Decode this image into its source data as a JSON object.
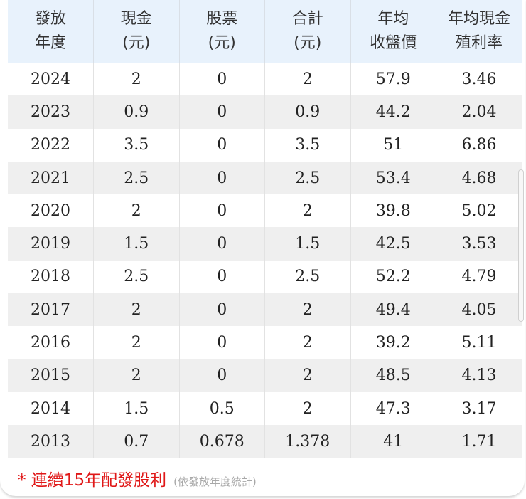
{
  "table": {
    "headers": [
      {
        "line1": "發放",
        "line2": "年度"
      },
      {
        "line1": "現金",
        "line2": "(元)"
      },
      {
        "line1": "股票",
        "line2": "(元)"
      },
      {
        "line1": "合計",
        "line2": "(元)"
      },
      {
        "line1": "年均",
        "line2": "收盤價"
      },
      {
        "line1": "年均現金",
        "line2": "殖利率"
      }
    ],
    "rows": [
      [
        "2024",
        "2",
        "0",
        "2",
        "57.9",
        "3.46"
      ],
      [
        "2023",
        "0.9",
        "0",
        "0.9",
        "44.2",
        "2.04"
      ],
      [
        "2022",
        "3.5",
        "0",
        "3.5",
        "51",
        "6.86"
      ],
      [
        "2021",
        "2.5",
        "0",
        "2.5",
        "53.4",
        "4.68"
      ],
      [
        "2020",
        "2",
        "0",
        "2",
        "39.8",
        "5.02"
      ],
      [
        "2019",
        "1.5",
        "0",
        "1.5",
        "42.5",
        "3.53"
      ],
      [
        "2018",
        "2.5",
        "0",
        "2.5",
        "52.2",
        "4.79"
      ],
      [
        "2017",
        "2",
        "0",
        "2",
        "49.4",
        "4.05"
      ],
      [
        "2016",
        "2",
        "0",
        "2",
        "39.2",
        "5.11"
      ],
      [
        "2015",
        "2",
        "0",
        "2",
        "48.5",
        "4.13"
      ],
      [
        "2014",
        "1.5",
        "0.5",
        "2",
        "47.3",
        "3.17"
      ],
      [
        "2013",
        "0.7",
        "0.678",
        "1.378",
        "41",
        "1.71"
      ]
    ]
  },
  "footnote": {
    "main": "* 連續15年配發股利",
    "sub": "(依發放年度統計)"
  },
  "colors": {
    "header_bg": "#e8f2fc",
    "row_alt_bg": "#efefef",
    "footnote_red": "#e01818",
    "footnote_gray": "#a8a8a8"
  }
}
